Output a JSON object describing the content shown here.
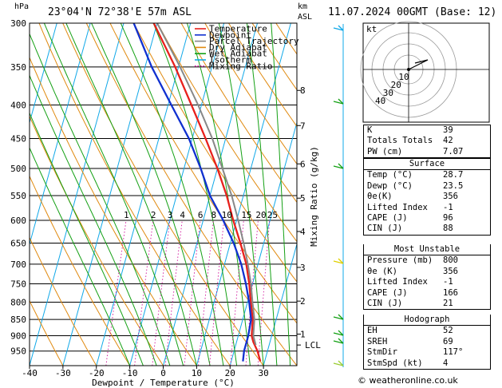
{
  "header": {
    "hpa_label": "hPa",
    "location": "23°04'N  72°38'E  57m  ASL",
    "km_label": "km",
    "asl_label": "ASL",
    "datetime": "11.07.2024  00GMT  (Base: 12)"
  },
  "legend": [
    {
      "label": "Temperature",
      "color": "#e8201c",
      "dash": false
    },
    {
      "label": "Dewpoint",
      "color": "#1030d0",
      "dash": false
    },
    {
      "label": "Parcel Trajectory",
      "color": "#888888",
      "dash": false
    },
    {
      "label": "Dry Adiabat",
      "color": "#e08a10",
      "dash": false
    },
    {
      "label": "Wet Adiabat",
      "color": "#14a014",
      "dash": false
    },
    {
      "label": "Isotherm",
      "color": "#10a8e8",
      "dash": false
    },
    {
      "label": "Mixing Ratio",
      "color": "#d0109a",
      "dash": true
    }
  ],
  "chart_data": {
    "type": "line",
    "title": "23°04'N  72°38'E  57m  ASL",
    "xlabel": "Dewpoint / Temperature (°C)",
    "ylabel": "hPa",
    "y_scale": "log",
    "xlim": [
      -40,
      40
    ],
    "ylim": [
      1000,
      300
    ],
    "x_ticks": [
      -40,
      -30,
      -20,
      -10,
      0,
      10,
      20,
      30
    ],
    "p_levels": [
      300,
      350,
      400,
      450,
      500,
      550,
      600,
      650,
      700,
      750,
      800,
      850,
      900,
      950
    ],
    "km_ticks": [
      {
        "km": "1",
        "p": 895
      },
      {
        "km": "2",
        "p": 797
      },
      {
        "km": "3",
        "p": 708
      },
      {
        "km": "4",
        "p": 624
      },
      {
        "km": "5",
        "p": 555
      },
      {
        "km": "6",
        "p": 492
      },
      {
        "km": "7",
        "p": 430
      },
      {
        "km": "8",
        "p": 380
      }
    ],
    "lcl_label": "LCL",
    "lcl_p": 930,
    "secondary_ylabel": "Mixing Ratio (g/kg)",
    "mixing_ratio_labels": [
      "1",
      "2",
      "3",
      "4",
      "6",
      "8",
      "10",
      "15",
      "20",
      "25"
    ],
    "mixing_ratio_values": [
      1,
      2,
      3,
      4,
      6,
      8,
      10,
      15,
      20,
      25
    ],
    "series": [
      {
        "name": "Temperature",
        "color": "#e8201c",
        "points": [
          [
            28.7,
            985
          ],
          [
            27,
            950
          ],
          [
            25,
            920
          ],
          [
            24,
            900
          ],
          [
            23,
            850
          ],
          [
            21,
            800
          ],
          [
            19,
            750
          ],
          [
            16.5,
            700
          ],
          [
            13,
            650
          ],
          [
            9,
            600
          ],
          [
            5,
            550
          ],
          [
            0,
            500
          ],
          [
            -6,
            450
          ],
          [
            -13,
            400
          ],
          [
            -21,
            350
          ],
          [
            -31,
            300
          ]
        ]
      },
      {
        "name": "Dewpoint",
        "color": "#1030d0",
        "points": [
          [
            23.5,
            985
          ],
          [
            23,
            950
          ],
          [
            23,
            900
          ],
          [
            22.5,
            850
          ],
          [
            20.5,
            800
          ],
          [
            18,
            750
          ],
          [
            15,
            700
          ],
          [
            11,
            650
          ],
          [
            6,
            600
          ],
          [
            0,
            550
          ],
          [
            -5,
            500
          ],
          [
            -11,
            450
          ],
          [
            -19,
            400
          ],
          [
            -28,
            350
          ],
          [
            -37,
            300
          ]
        ]
      },
      {
        "name": "Parcel Trajectory",
        "color": "#888888",
        "points": [
          [
            26,
            930
          ],
          [
            24.5,
            900
          ],
          [
            23.5,
            850
          ],
          [
            21.5,
            800
          ],
          [
            19.5,
            750
          ],
          [
            17,
            700
          ],
          [
            14,
            650
          ],
          [
            10.5,
            600
          ],
          [
            6.5,
            550
          ],
          [
            1.5,
            500
          ],
          [
            -4,
            450
          ],
          [
            -11,
            400
          ],
          [
            -19.5,
            350
          ],
          [
            -30,
            300
          ]
        ]
      }
    ]
  },
  "hodograph": {
    "label": "kt",
    "rings": [
      "10",
      "20",
      "30",
      "40"
    ],
    "arrow_from": [
      0,
      0
    ],
    "arrow_to": [
      3,
      1
    ]
  },
  "indices": {
    "top": [
      {
        "k": "K",
        "v": "39"
      },
      {
        "k": "Totals Totals",
        "v": "42"
      },
      {
        "k": "PW (cm)",
        "v": "7.07"
      }
    ],
    "surface": {
      "title": "Surface",
      "rows": [
        {
          "k": "Temp (°C)",
          "v": "28.7"
        },
        {
          "k": "Dewp (°C)",
          "v": "23.5"
        },
        {
          "k": "θe(K)",
          "v": "356"
        },
        {
          "k": "Lifted Index",
          "v": "-1"
        },
        {
          "k": "CAPE (J)",
          "v": "96"
        },
        {
          "k": "CIN (J)",
          "v": "88"
        }
      ]
    },
    "most_unstable": {
      "title": "Most Unstable",
      "rows": [
        {
          "k": "Pressure (mb)",
          "v": "800"
        },
        {
          "k": "θe (K)",
          "v": "356"
        },
        {
          "k": "Lifted Index",
          "v": "-1"
        },
        {
          "k": "CAPE (J)",
          "v": "166"
        },
        {
          "k": "CIN (J)",
          "v": "21"
        }
      ]
    },
    "hodograph": {
      "title": "Hodograph",
      "rows": [
        {
          "k": "EH",
          "v": "52"
        },
        {
          "k": "SREH",
          "v": "69"
        },
        {
          "k": "StmDir",
          "v": "117°"
        },
        {
          "k": "StmSpd (kt)",
          "v": "4"
        }
      ]
    }
  },
  "credit": "© weatheronline.co.uk"
}
